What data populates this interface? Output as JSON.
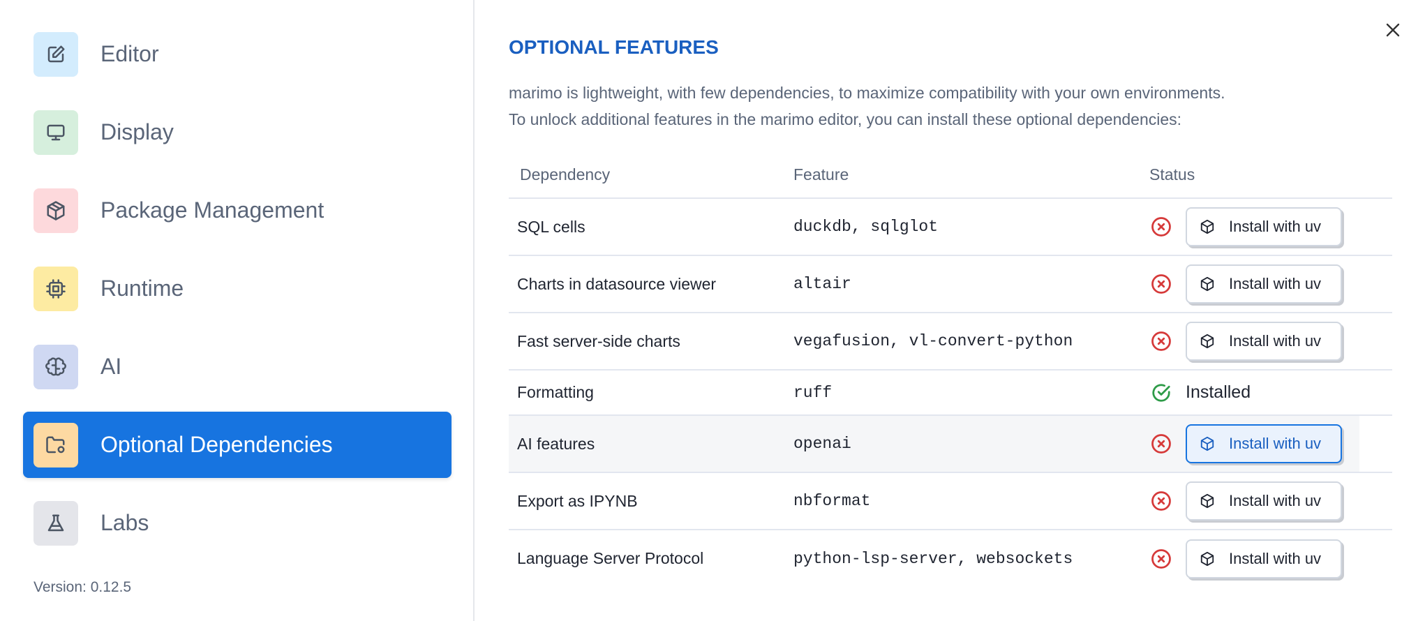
{
  "sidebar": {
    "items": [
      {
        "label": "Editor",
        "icon": "edit-icon",
        "icon_bg": "#d3ecfd"
      },
      {
        "label": "Display",
        "icon": "monitor-icon",
        "icon_bg": "#d6efdd"
      },
      {
        "label": "Package Management",
        "icon": "package-icon",
        "icon_bg": "#fdd9dc"
      },
      {
        "label": "Runtime",
        "icon": "cpu-icon",
        "icon_bg": "#fdeba2"
      },
      {
        "label": "AI",
        "icon": "brain-icon",
        "icon_bg": "#cfd8f2"
      },
      {
        "label": "Optional Dependencies",
        "icon": "folder-cog-icon",
        "icon_bg": "#fdd9a2",
        "active": true
      },
      {
        "label": "Labs",
        "icon": "flask-icon",
        "icon_bg": "#e4e5ea"
      }
    ],
    "version": "Version: 0.12.5",
    "active_color": "#1774e0"
  },
  "main": {
    "title": "OPTIONAL FEATURES",
    "description_line1": "marimo is lightweight, with few dependencies, to maximize compatibility with your own environments.",
    "description_line2": "To unlock additional features in the marimo editor, you can install these optional dependencies:",
    "close_icon": "close-icon",
    "table": {
      "headers": [
        "Dependency",
        "Feature",
        "Status"
      ],
      "rows": [
        {
          "dependency": "SQL cells",
          "feature": "duckdb, sqlglot",
          "status": "missing",
          "action": "Install with uv"
        },
        {
          "dependency": "Charts in datasource viewer",
          "feature": "altair",
          "status": "missing",
          "action": "Install with uv"
        },
        {
          "dependency": "Fast server-side charts",
          "feature": "vegafusion, vl-convert-python",
          "status": "missing",
          "action": "Install with uv"
        },
        {
          "dependency": "Formatting",
          "feature": "ruff",
          "status": "installed",
          "action": "Installed"
        },
        {
          "dependency": "AI features",
          "feature": "openai",
          "status": "missing",
          "action": "Install with uv",
          "hovered": true
        },
        {
          "dependency": "Export as IPYNB",
          "feature": "nbformat",
          "status": "missing",
          "action": "Install with uv"
        },
        {
          "dependency": "Language Server Protocol",
          "feature": "python-lsp-server, websockets",
          "status": "missing",
          "action": "Install with uv"
        }
      ]
    }
  },
  "colors": {
    "missing": "#d63a3a",
    "installed": "#2e9b48",
    "title": "#1a5fc0"
  }
}
